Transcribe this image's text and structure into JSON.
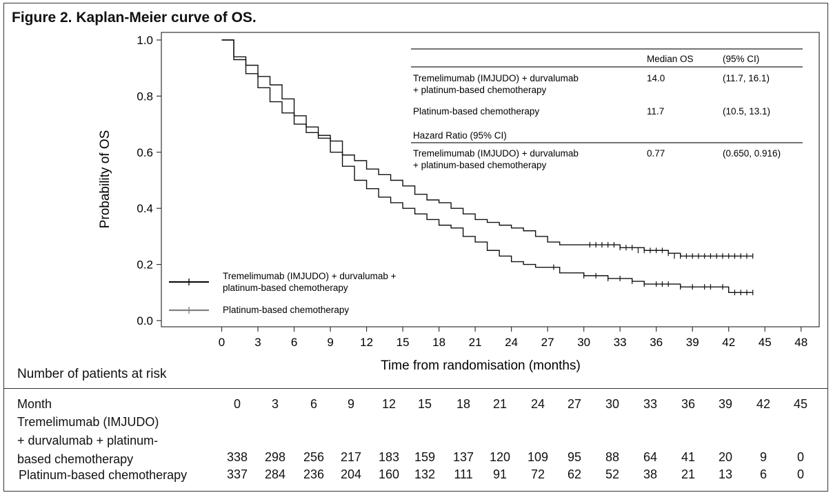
{
  "figure_title": "Figure 2. Kaplan-Meier curve of OS.",
  "chart_data": {
    "type": "line",
    "title": "",
    "xlabel": "Time from randomisation (months)",
    "ylabel": "Probability of OS",
    "xlim": [
      -5,
      49.5
    ],
    "ylim": [
      0,
      1.0
    ],
    "xticks": [
      "0",
      "3",
      "6",
      "9",
      "12",
      "15",
      "18",
      "21",
      "24",
      "27",
      "30",
      "33",
      "36",
      "39",
      "42",
      "45",
      "48"
    ],
    "yticks": [
      "0.0",
      "0.2",
      "0.4",
      "0.6",
      "0.8",
      "1.0"
    ],
    "grid": false,
    "legend_position": "bottom-left",
    "colors": {
      "treatment": "#111111",
      "control": "#808080"
    },
    "series": [
      {
        "name": "Tremelimumab (IMJUDO) + durvalumab + platinum-based chemotherapy",
        "x": [
          0,
          1,
          2,
          3,
          4,
          5,
          6,
          7,
          8,
          9,
          10,
          11,
          12,
          13,
          14,
          15,
          16,
          17,
          18,
          19,
          20,
          21,
          22,
          23,
          24,
          25,
          26,
          27,
          28,
          29,
          30,
          31,
          32,
          33,
          34,
          35,
          36,
          37,
          38,
          39,
          40,
          41,
          42,
          43,
          44
        ],
        "y": [
          1.0,
          0.94,
          0.91,
          0.87,
          0.84,
          0.79,
          0.73,
          0.69,
          0.66,
          0.64,
          0.59,
          0.57,
          0.54,
          0.52,
          0.5,
          0.48,
          0.45,
          0.43,
          0.42,
          0.4,
          0.38,
          0.36,
          0.35,
          0.34,
          0.33,
          0.32,
          0.3,
          0.28,
          0.27,
          0.27,
          0.27,
          0.27,
          0.27,
          0.26,
          0.26,
          0.25,
          0.25,
          0.24,
          0.23,
          0.23,
          0.23,
          0.23,
          0.23,
          0.23,
          0.23
        ],
        "censored_x": [
          30.5,
          31,
          31.5,
          32,
          32.5,
          33,
          33.5,
          34,
          34.5,
          35,
          35.5,
          36,
          36.5,
          37,
          37.5,
          38,
          38.5,
          39,
          39.5,
          40,
          40.5,
          41,
          41.5,
          42,
          42.5,
          43,
          43.5,
          44
        ],
        "censored_y": [
          0.27,
          0.27,
          0.27,
          0.27,
          0.27,
          0.26,
          0.26,
          0.26,
          0.25,
          0.25,
          0.25,
          0.25,
          0.25,
          0.24,
          0.23,
          0.23,
          0.23,
          0.23,
          0.23,
          0.23,
          0.23,
          0.23,
          0.23,
          0.23,
          0.23,
          0.23,
          0.23,
          0.23
        ]
      },
      {
        "name": "Platinum-based chemotherapy",
        "x": [
          0,
          1,
          2,
          3,
          4,
          5,
          6,
          7,
          8,
          9,
          10,
          11,
          12,
          13,
          14,
          15,
          16,
          17,
          18,
          19,
          20,
          21,
          22,
          23,
          24,
          25,
          26,
          27,
          28,
          29,
          30,
          31,
          32,
          33,
          34,
          35,
          36,
          37,
          38,
          39,
          40,
          41,
          42,
          43,
          44
        ],
        "y": [
          1.0,
          0.93,
          0.88,
          0.83,
          0.78,
          0.74,
          0.7,
          0.67,
          0.65,
          0.6,
          0.55,
          0.5,
          0.47,
          0.44,
          0.42,
          0.4,
          0.38,
          0.36,
          0.34,
          0.33,
          0.3,
          0.28,
          0.25,
          0.23,
          0.21,
          0.2,
          0.19,
          0.19,
          0.17,
          0.17,
          0.16,
          0.16,
          0.15,
          0.15,
          0.14,
          0.13,
          0.13,
          0.13,
          0.12,
          0.12,
          0.12,
          0.12,
          0.1,
          0.1,
          0.1
        ],
        "censored_x": [
          27.5,
          30,
          31,
          32,
          33,
          34,
          35,
          36,
          36.5,
          37,
          38,
          39,
          40,
          40.5,
          41.5,
          42.5,
          43,
          43.5,
          44
        ],
        "censored_y": [
          0.19,
          0.16,
          0.16,
          0.15,
          0.15,
          0.14,
          0.13,
          0.13,
          0.13,
          0.13,
          0.12,
          0.12,
          0.12,
          0.12,
          0.12,
          0.1,
          0.1,
          0.1,
          0.1
        ]
      }
    ],
    "inset_table": {
      "col_median": "Median OS",
      "col_ci": "(95% CI)",
      "rows": [
        {
          "label_line1": "Tremelimumab (IMJUDO) + durvalumab",
          "label_line2": "+ platinum-based chemotherapy",
          "median": "14.0",
          "ci": "(11.7, 16.1)"
        },
        {
          "label_line1": "Platinum-based chemotherapy",
          "label_line2": "",
          "median": "11.7",
          "ci": "(10.5, 13.1)"
        }
      ],
      "hr_heading": "Hazard Ratio (95% CI)",
      "hr_row": {
        "label_line1": "Tremelimumab (IMJUDO) + durvalumab",
        "label_line2": "+ platinum-based chemotherapy",
        "hr": "0.77",
        "ci": "(0.650, 0.916)"
      }
    },
    "legend": [
      {
        "line1": "Tremelimumab (IMJUDO) + durvalumab +",
        "line2": "platinum-based chemotherapy"
      },
      {
        "line1": "Platinum-based chemotherapy",
        "line2": ""
      }
    ]
  },
  "risk_table": {
    "heading": "Number of patients at risk",
    "month_label": "Month",
    "months": [
      "0",
      "3",
      "6",
      "9",
      "12",
      "15",
      "18",
      "21",
      "24",
      "27",
      "30",
      "33",
      "36",
      "39",
      "42",
      "45"
    ],
    "rows": [
      {
        "label_lines": [
          "Tremelimumab (IMJUDO)",
          "+ durvalumab + platinum-",
          "based chemotherapy"
        ],
        "values": [
          "338",
          "298",
          "256",
          "217",
          "183",
          "159",
          "137",
          "120",
          "109",
          "95",
          "88",
          "64",
          "41",
          "20",
          "9",
          "0"
        ]
      },
      {
        "label_lines": [
          "Platinum-based chemotherapy"
        ],
        "values": [
          "337",
          "284",
          "236",
          "204",
          "160",
          "132",
          "111",
          "91",
          "72",
          "62",
          "52",
          "38",
          "21",
          "13",
          "6",
          "0"
        ]
      }
    ]
  }
}
